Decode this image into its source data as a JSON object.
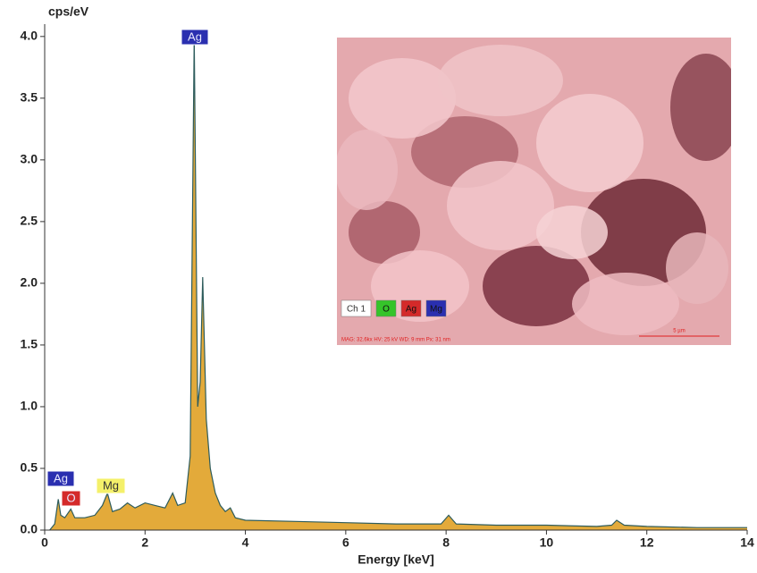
{
  "chart_data": {
    "type": "area",
    "y_label": "cps/eV",
    "x_label": "Energy [keV]",
    "x": [
      0.1,
      0.2,
      0.27,
      0.32,
      0.4,
      0.52,
      0.6,
      0.8,
      1.0,
      1.15,
      1.25,
      1.35,
      1.5,
      1.65,
      1.8,
      2.0,
      2.2,
      2.4,
      2.55,
      2.65,
      2.8,
      2.9,
      2.98,
      3.05,
      3.1,
      3.15,
      3.22,
      3.3,
      3.4,
      3.5,
      3.6,
      3.7,
      3.8,
      4.0,
      5.0,
      6.0,
      7.0,
      7.9,
      8.05,
      8.2,
      9.0,
      10.0,
      11.0,
      11.3,
      11.4,
      11.55,
      12.0,
      13.0,
      14.0
    ],
    "series": [
      {
        "color": "#e3aa3a",
        "values": [
          0,
          0.05,
          0.25,
          0.12,
          0.1,
          0.17,
          0.1,
          0.1,
          0.12,
          0.2,
          0.3,
          0.15,
          0.17,
          0.22,
          0.18,
          0.22,
          0.2,
          0.18,
          0.3,
          0.2,
          0.22,
          0.6,
          4.0,
          1.0,
          1.2,
          2.05,
          0.9,
          0.5,
          0.3,
          0.2,
          0.15,
          0.18,
          0.1,
          0.08,
          0.07,
          0.06,
          0.05,
          0.05,
          0.12,
          0.05,
          0.04,
          0.04,
          0.03,
          0.04,
          0.08,
          0.04,
          0.03,
          0.02,
          0.02
        ]
      }
    ],
    "xlim": [
      0,
      14
    ],
    "xticks": [
      0,
      2,
      4,
      6,
      8,
      10,
      12,
      14
    ],
    "ylim": [
      0,
      4.1
    ],
    "yticks": [
      {
        "value": 0,
        "label": "0.0"
      },
      0.5,
      {
        "value": 1,
        "label": "1.0"
      },
      1.5,
      {
        "value": 2,
        "label": "2.0"
      },
      2.5,
      {
        "value": 3,
        "label": "3.0"
      },
      3.5,
      {
        "value": 4,
        "label": "4.0"
      }
    ],
    "annotations": [
      {
        "text": "Ag",
        "color": "#2a2fb0"
      },
      {
        "text": "Ag",
        "color": "#2a2fb0"
      },
      {
        "text": "O",
        "color": "#d42a2a"
      },
      {
        "text": "Mg",
        "color": "#f4f06a"
      }
    ],
    "inset": {
      "legend": [
        {
          "text": "Ch 1",
          "color": "#ffffff"
        },
        {
          "text": "O",
          "color": "#35c42a"
        },
        {
          "text": "Ag",
          "color": "#d42a2a"
        },
        {
          "text": "Mg",
          "color": "#2a2fb0"
        }
      ],
      "info": "MAG: 32.6kx  HV: 25 kV  WD: 9 mm  Px: 31 nm",
      "scale_bar": "5 µm"
    }
  }
}
